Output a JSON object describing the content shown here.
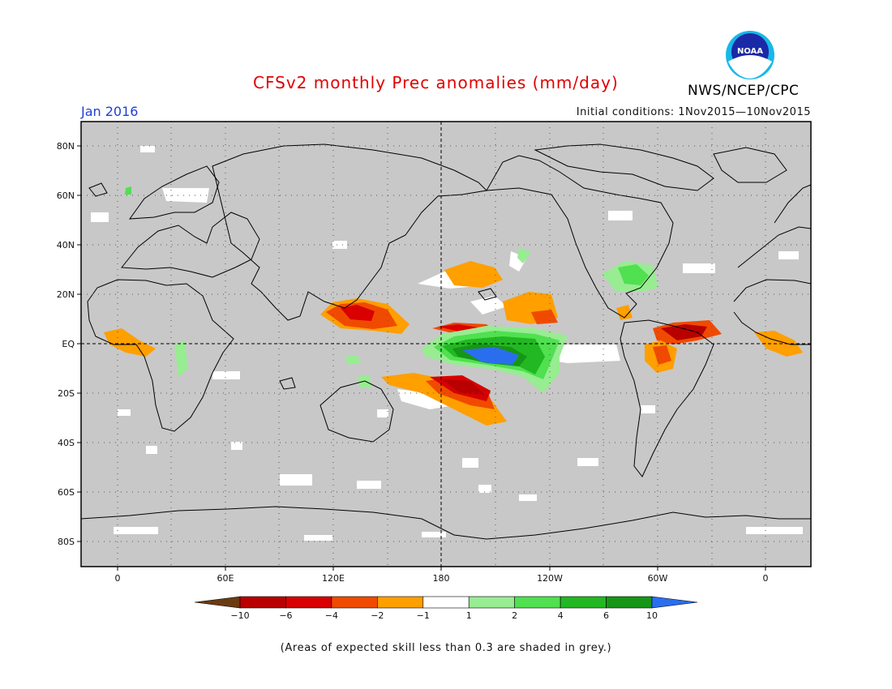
{
  "header": {
    "title": "CFSv2 monthly Prec anomalies (mm/day)",
    "month": "Jan 2016",
    "initial_conditions": "Initial conditions: 1Nov2015—10Nov2015",
    "agency": "NWS/NCEP/CPC",
    "logo_text": "NOAA"
  },
  "map": {
    "lat_labels": [
      "80N",
      "60N",
      "40N",
      "20N",
      "EQ",
      "20S",
      "40S",
      "60S",
      "80S"
    ],
    "lon_labels": [
      "0",
      "60E",
      "120E",
      "180",
      "120W",
      "60W",
      "0"
    ]
  },
  "colorbar": {
    "tick_labels": [
      "−10",
      "−6",
      "−4",
      "−2",
      "−1",
      "1",
      "2",
      "4",
      "6",
      "10"
    ],
    "colors": [
      "#6b3b12",
      "#b80000",
      "#d80000",
      "#f04a00",
      "#ff9f00",
      "#ffffff",
      "#98ec92",
      "#50e050",
      "#22b822",
      "#169616",
      "#2a6ef0"
    ]
  },
  "footnote": "(Areas of expected skill less than 0.3 are shaded in grey.)"
}
